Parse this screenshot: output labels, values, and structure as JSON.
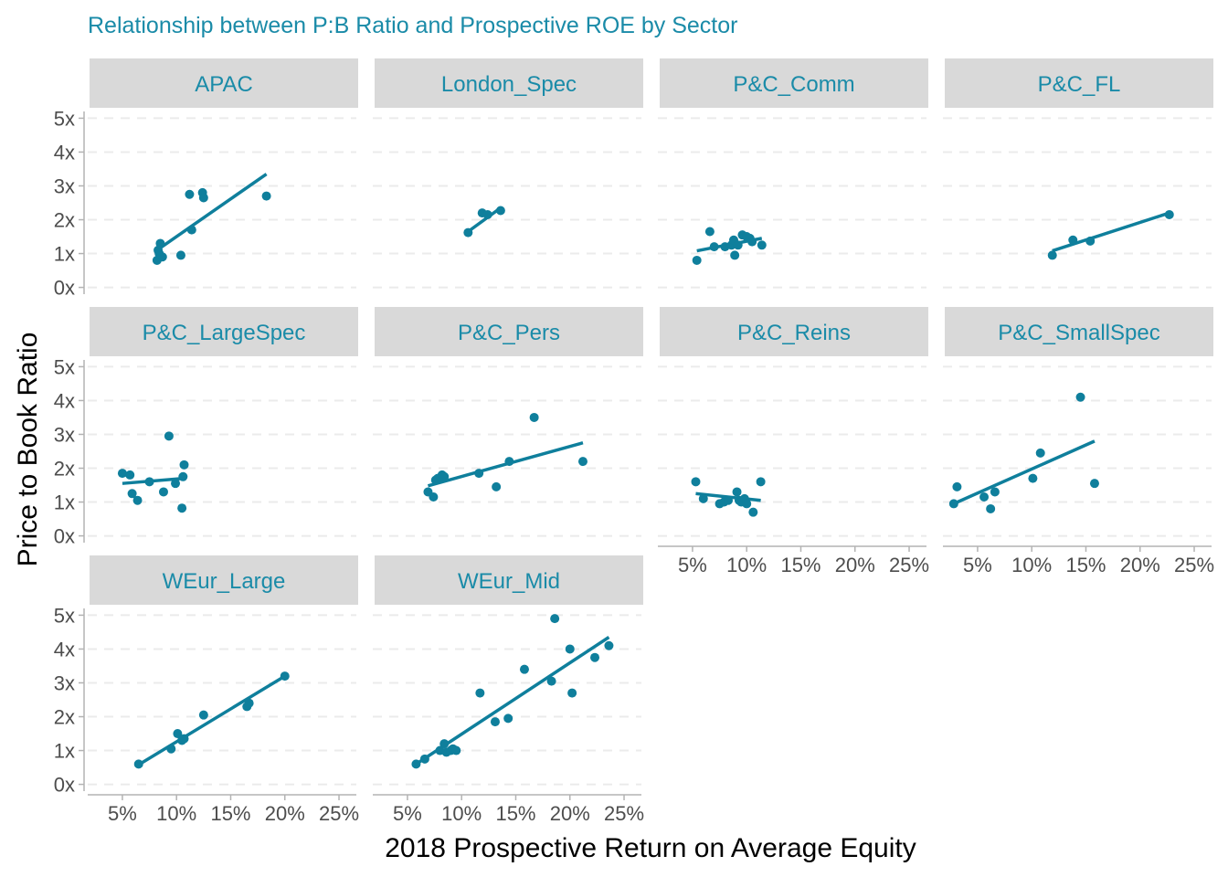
{
  "chart_data": {
    "type": "scatter",
    "title": "Relationship between P:B Ratio and Prospective ROE by Sector",
    "xlabel": "2018 Prospective Return on Average Equity",
    "ylabel": "Price to Book Ratio",
    "x_ticks": [
      "5%",
      "10%",
      "15%",
      "20%",
      "25%"
    ],
    "x_tick_values": [
      5,
      10,
      15,
      20,
      25
    ],
    "y_ticks": [
      "0x",
      "1x",
      "2x",
      "3x",
      "4x",
      "5x"
    ],
    "y_tick_values": [
      0,
      1,
      2,
      3,
      4,
      5
    ],
    "xlim": [
      1.8,
      26.6
    ],
    "ylim": [
      -0.2,
      5.2
    ],
    "grid": "horizontal dashed",
    "colors": {
      "accent": "#0f7f9c",
      "title": "#1a8ba8",
      "strip": "#d9d9d9"
    },
    "panels": [
      {
        "name": "APAC",
        "points": [
          [
            8.2,
            0.8
          ],
          [
            8.3,
            1.1
          ],
          [
            8.5,
            1.3
          ],
          [
            8.7,
            0.9
          ],
          [
            8.4,
            1.0
          ],
          [
            10.4,
            0.95
          ],
          [
            11.2,
            2.75
          ],
          [
            11.4,
            1.7
          ],
          [
            12.4,
            2.8
          ],
          [
            12.5,
            2.65
          ],
          [
            18.3,
            2.7
          ]
        ],
        "fit": [
          [
            8.2,
            1.1
          ],
          [
            18.3,
            3.35
          ]
        ]
      },
      {
        "name": "London_Spec",
        "points": [
          [
            10.6,
            1.62
          ],
          [
            11.9,
            2.2
          ],
          [
            12.4,
            2.15
          ],
          [
            13.6,
            2.27
          ]
        ],
        "fit": [
          [
            10.6,
            1.65
          ],
          [
            13.6,
            2.35
          ]
        ]
      },
      {
        "name": "P&C_Comm",
        "points": [
          [
            5.4,
            0.8
          ],
          [
            6.6,
            1.65
          ],
          [
            7.0,
            1.2
          ],
          [
            8.0,
            1.2
          ],
          [
            8.6,
            1.25
          ],
          [
            8.8,
            1.4
          ],
          [
            8.9,
            0.95
          ],
          [
            9.2,
            1.25
          ],
          [
            9.6,
            1.55
          ],
          [
            10.0,
            1.5
          ],
          [
            10.3,
            1.45
          ],
          [
            10.5,
            1.35
          ],
          [
            11.4,
            1.25
          ]
        ],
        "fit": [
          [
            5.4,
            1.08
          ],
          [
            11.4,
            1.45
          ]
        ]
      },
      {
        "name": "P&C_FL",
        "points": [
          [
            11.9,
            0.95
          ],
          [
            13.8,
            1.4
          ],
          [
            15.4,
            1.37
          ],
          [
            22.7,
            2.15
          ]
        ],
        "fit": [
          [
            11.9,
            1.08
          ],
          [
            22.7,
            2.2
          ]
        ]
      },
      {
        "name": "P&C_LargeSpec",
        "points": [
          [
            5.0,
            1.85
          ],
          [
            5.7,
            1.8
          ],
          [
            5.9,
            1.25
          ],
          [
            6.4,
            1.05
          ],
          [
            7.5,
            1.6
          ],
          [
            8.8,
            1.3
          ],
          [
            9.3,
            2.95
          ],
          [
            9.9,
            1.55
          ],
          [
            10.6,
            1.75
          ],
          [
            10.7,
            2.1
          ],
          [
            10.5,
            0.82
          ]
        ],
        "fit": [
          [
            5.0,
            1.55
          ],
          [
            10.7,
            1.7
          ]
        ]
      },
      {
        "name": "P&C_Pers",
        "points": [
          [
            6.9,
            1.3
          ],
          [
            7.4,
            1.15
          ],
          [
            7.6,
            1.65
          ],
          [
            7.8,
            1.7
          ],
          [
            8.2,
            1.8
          ],
          [
            8.4,
            1.75
          ],
          [
            11.6,
            1.85
          ],
          [
            13.2,
            1.45
          ],
          [
            14.4,
            2.2
          ],
          [
            16.7,
            3.5
          ],
          [
            21.2,
            2.2
          ]
        ],
        "fit": [
          [
            6.9,
            1.48
          ],
          [
            21.2,
            2.75
          ]
        ]
      },
      {
        "name": "P&C_Reins",
        "points": [
          [
            5.3,
            1.6
          ],
          [
            6.0,
            1.1
          ],
          [
            7.5,
            0.95
          ],
          [
            7.9,
            1.0
          ],
          [
            8.3,
            1.05
          ],
          [
            9.1,
            1.3
          ],
          [
            9.3,
            1.05
          ],
          [
            9.5,
            1.0
          ],
          [
            9.8,
            1.1
          ],
          [
            10.0,
            0.95
          ],
          [
            10.6,
            0.7
          ],
          [
            11.3,
            1.6
          ]
        ],
        "fit": [
          [
            5.3,
            1.25
          ],
          [
            11.3,
            1.05
          ]
        ]
      },
      {
        "name": "P&C_SmallSpec",
        "points": [
          [
            2.8,
            0.95
          ],
          [
            3.1,
            1.45
          ],
          [
            5.6,
            1.15
          ],
          [
            6.2,
            0.8
          ],
          [
            6.6,
            1.3
          ],
          [
            10.1,
            1.7
          ],
          [
            10.8,
            2.45
          ],
          [
            14.5,
            4.1
          ],
          [
            15.8,
            1.55
          ]
        ],
        "fit": [
          [
            2.8,
            0.95
          ],
          [
            15.8,
            2.8
          ]
        ]
      },
      {
        "name": "WEur_Large",
        "points": [
          [
            6.5,
            0.6
          ],
          [
            9.5,
            1.05
          ],
          [
            10.1,
            1.5
          ],
          [
            10.5,
            1.3
          ],
          [
            10.7,
            1.35
          ],
          [
            12.5,
            2.05
          ],
          [
            16.5,
            2.3
          ],
          [
            16.7,
            2.4
          ],
          [
            20.0,
            3.2
          ]
        ],
        "fit": [
          [
            6.5,
            0.58
          ],
          [
            20.0,
            3.2
          ]
        ]
      },
      {
        "name": "WEur_Mid",
        "points": [
          [
            5.8,
            0.6
          ],
          [
            6.6,
            0.75
          ],
          [
            8.0,
            1.0
          ],
          [
            8.4,
            1.2
          ],
          [
            8.6,
            0.95
          ],
          [
            9.0,
            1.0
          ],
          [
            9.2,
            1.05
          ],
          [
            9.5,
            1.0
          ],
          [
            11.7,
            2.7
          ],
          [
            13.1,
            1.85
          ],
          [
            14.3,
            1.95
          ],
          [
            15.8,
            3.4
          ],
          [
            18.3,
            3.05
          ],
          [
            18.6,
            4.9
          ],
          [
            20.0,
            4.0
          ],
          [
            20.2,
            2.7
          ],
          [
            22.3,
            3.75
          ],
          [
            23.6,
            4.1
          ]
        ],
        "fit": [
          [
            5.8,
            0.6
          ],
          [
            23.6,
            4.35
          ]
        ]
      }
    ]
  }
}
